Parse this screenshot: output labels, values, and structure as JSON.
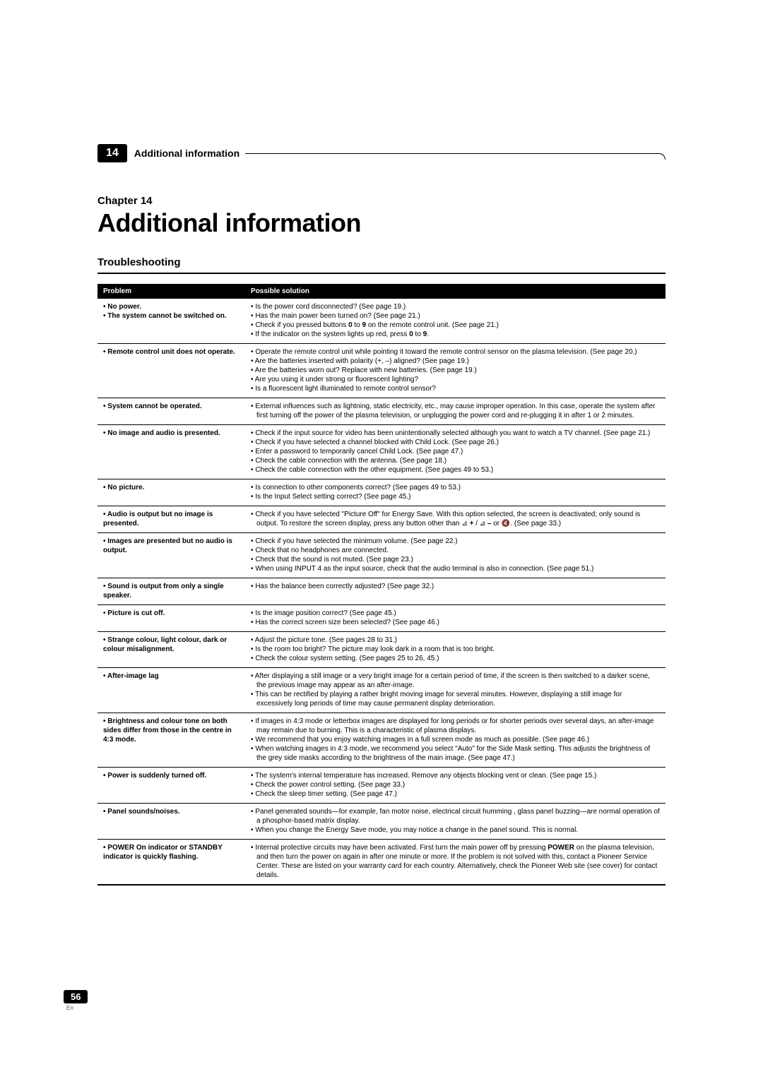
{
  "header": {
    "section_number": "14",
    "section_title": "Additional information"
  },
  "chapter": {
    "label": "Chapter 14",
    "title": "Additional information"
  },
  "section_heading": "Troubleshooting",
  "table": {
    "col_problem": "Problem",
    "col_solution": "Possible solution"
  },
  "rows": [
    {
      "problem": "• No power.\n• The system cannot be switched on.",
      "solutions": [
        "Is the power cord disconnected? (See page 19.)",
        "Has the main power been turned on? (See page 21.)",
        "Check if you pressed buttons <b>0</b> to <b>9</b> on the remote control unit. (See page 21.)",
        "If the indicator on the system lights up red, press <b>0</b> to <b>9</b>."
      ]
    },
    {
      "problem": "• Remote control unit does not operate.",
      "solutions": [
        "Operate the remote control unit while pointing it toward the remote control sensor on the plasma television. (See page 20.)",
        "Are the batteries inserted with polarity (+, –) aligned? (See page 19.)",
        "Are the batteries worn out? Replace with new batteries. (See page 19.)",
        "Are you using it under strong or fluorescent lighting?",
        "Is a fluorescent light illuminated to remote control sensor?"
      ]
    },
    {
      "problem": "• System cannot be operated.",
      "solutions": [
        "External influences such as lightning, static electricity, etc., may cause improper operation. In this case, operate the system after first turning off the power of the plasma television, or unplugging the power cord and re-plugging it in after 1 or 2 minutes."
      ]
    },
    {
      "problem": "• No image and audio is presented.",
      "solutions": [
        "Check if the input source for video has been unintentionally selected although you want to watch a TV channel. (See page 21.)",
        "Check if you have selected a channel blocked with Child Lock. (See page 26.)",
        "Enter a password to temporarily cancel Child Lock. (See page 47.)",
        "Check the cable connection with the antenna. (See page 18.)",
        "Check the cable connection with the other equipment. (See pages 49 to 53.)"
      ]
    },
    {
      "problem": "• No picture.",
      "solutions": [
        "Is connection to other components correct? (See pages 49 to 53.)",
        "Is the Input Select setting correct? (See page 45.)"
      ]
    },
    {
      "problem": "• Audio is output but no image is presented.",
      "solutions": [
        "Check if you have selected \"Picture Off\" for Energy Save. With this option selected, the screen is deactivated; only sound is output. To restore the screen display, press any button other than ⊿ <b>+</b> / ⊿ <b>–</b> or 🔇. (See page 33.)"
      ]
    },
    {
      "problem": "• Images are presented but no audio is output.",
      "solutions": [
        "Check if you have selected the minimum volume. (See page 22.)",
        "Check that no headphones are connected.",
        "Check that the sound is not muted. (See page 23.)",
        "When using INPUT 4 as the input source, check that the audio terminal is also in connection. (See page 51.)"
      ]
    },
    {
      "problem": "• Sound is output from only a single speaker.",
      "solutions": [
        "Has the balance been correctly adjusted? (See page 32.)"
      ]
    },
    {
      "problem": "• Picture is cut off.",
      "solutions": [
        "Is the image position correct? (See page 45.)",
        "Has the correct screen size been selected? (See page 46.)"
      ]
    },
    {
      "problem": "• Strange colour, light colour, dark or colour misalignment.",
      "solutions": [
        "Adjust the picture tone. (See pages 28 to 31.)",
        "Is the room too bright? The picture may look dark in a room that is too bright.",
        "Check the colour system setting. (See pages 25 to 26, 45.)"
      ]
    },
    {
      "problem": "• After-image lag",
      "solutions": [
        "After displaying a still image or a very bright image for a certain period of time, if the screen is then switched to a darker scene, the previous image may appear as an after-image.",
        "This can be rectified by playing a rather bright moving image for several minutes. However, displaying a still image for excessively long periods of time may cause permanent display deterioration."
      ]
    },
    {
      "problem": "• Brightness and colour tone on both sides differ from those in the centre in 4:3 mode.",
      "solutions": [
        "If images in 4:3 mode or letterbox images are displayed for long periods or for shorter periods over several days, an after-image may remain due to burning. This is a characteristic of plasma displays.",
        "We recommend that you enjoy watching images in a full screen mode as much as possible. (See page 46.)",
        "When watching images in 4:3 mode, we recommend you select \"Auto\" for the Side Mask setting. This adjusts the brightness of the grey side masks according to the brightness of the main image. (See page 47.)"
      ]
    },
    {
      "problem": "• Power is suddenly turned off.",
      "solutions": [
        "The system's internal temperature has increased. Remove any objects blocking vent or clean. (See page 15.)",
        "Check the power control setting. (See page 33.)",
        "Check the sleep timer setting. (See page 47.)"
      ]
    },
    {
      "problem": "• Panel sounds/noises.",
      "solutions": [
        "Panel generated sounds—for example, fan motor noise, electrical circuit humming , glass panel buzzing—are normal operation of a phosphor-based matrix display.",
        "When you change the Energy Save mode, you may notice a change in the panel sound. This is normal."
      ]
    },
    {
      "problem": "• POWER On indicator or STANDBY indicator is quickly flashing.",
      "solutions": [
        "Internal protective circuits may have been activated. First turn the main power off by pressing <b>POWER</b> on the plasma television, and then turn the power on again in after one minute or more. If the problem is not solved with this, contact a Pioneer Service Center. These are listed on your warranty card for each country. Alternatively, check the Pioneer Web site (see cover) for contact details."
      ]
    }
  ],
  "footer": {
    "page_number": "56",
    "lang": "En"
  }
}
